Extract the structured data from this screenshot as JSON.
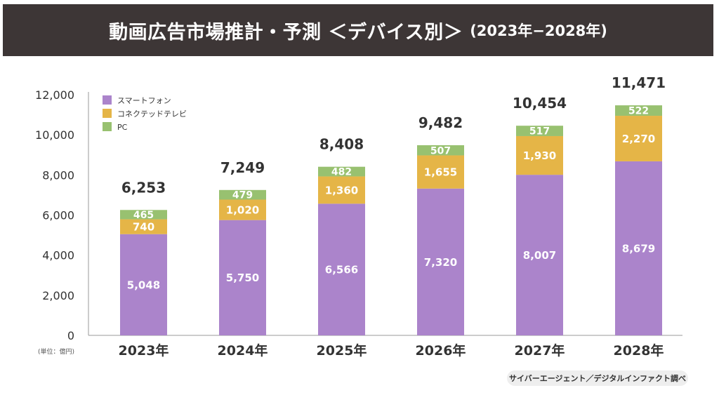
{
  "title": {
    "main": "動画広告市場推計・予測 ＜デバイス別＞",
    "sub": "(2023年−2028年)"
  },
  "source": "サイバーエージェント／デジタルインファクト調べ",
  "colors": {
    "smartphone": "#ab84cb",
    "ctv": "#e5b547",
    "pc": "#98c170",
    "axis": "#999999",
    "text": "#333333",
    "title_bg": "#3d3636"
  },
  "chart_data": {
    "type": "bar",
    "stacked": true,
    "title": "動画広告市場推計・予測 ＜デバイス別＞ (2023年−2028年)",
    "xlabel": "",
    "ylabel": "",
    "unit_label": "(単位：億円)",
    "categories": [
      "2023年",
      "2024年",
      "2025年",
      "2026年",
      "2027年",
      "2028年"
    ],
    "series": [
      {
        "name": "スマートフォン",
        "values": [
          5048,
          5750,
          6566,
          7320,
          8007,
          8679
        ],
        "labels": [
          "5,048",
          "5,750",
          "6,566",
          "7,320",
          "8,007",
          "8,679"
        ]
      },
      {
        "name": "コネクテッドテレビ",
        "values": [
          740,
          1020,
          1360,
          1655,
          1930,
          2270
        ],
        "labels": [
          "740",
          "1,020",
          "1,360",
          "1,655",
          "1,930",
          "2,270"
        ]
      },
      {
        "name": "PC",
        "values": [
          465,
          479,
          482,
          507,
          517,
          522
        ],
        "labels": [
          "465",
          "479",
          "482",
          "507",
          "517",
          "522"
        ]
      }
    ],
    "totals": [
      6253,
      7249,
      8408,
      9482,
      10454,
      11471
    ],
    "total_labels": [
      "6,253",
      "7,249",
      "8,408",
      "9,482",
      "10,454",
      "11,471"
    ],
    "ylim": [
      0,
      12000
    ],
    "yticks": [
      0,
      2000,
      4000,
      6000,
      8000,
      10000,
      12000
    ],
    "ytick_labels": [
      "0",
      "2,000",
      "4,000",
      "6,000",
      "8,000",
      "10,000",
      "12,000"
    ],
    "grid": false,
    "legend": {
      "position": "top-left",
      "entries": [
        "スマートフォン",
        "コネクテッドテレビ",
        "PC"
      ]
    }
  }
}
